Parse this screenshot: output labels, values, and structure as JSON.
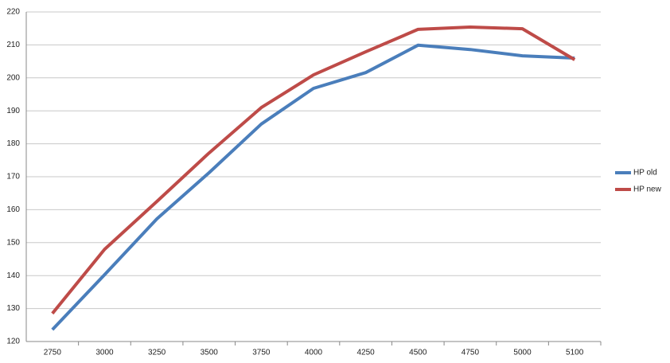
{
  "chart_data": {
    "type": "line",
    "categories": [
      "2750",
      "3000",
      "3250",
      "3500",
      "3750",
      "4000",
      "4250",
      "4500",
      "4750",
      "5000",
      "5100"
    ],
    "series": [
      {
        "name": "HP old",
        "color": "#4a7ebb",
        "values": [
          123.6,
          140.3,
          157.2,
          171.2,
          186,
          196.8,
          201.6,
          209.9,
          208.6,
          206.7,
          206
        ]
      },
      {
        "name": "HP new",
        "color": "#be4b48",
        "values": [
          128.5,
          148,
          162.5,
          177.2,
          191,
          200.9,
          207.9,
          214.7,
          215.4,
          214.9,
          205.5
        ]
      }
    ],
    "ylim": [
      120,
      220
    ],
    "yticks": [
      120,
      130,
      140,
      150,
      160,
      170,
      180,
      190,
      200,
      210,
      220
    ],
    "grid": true,
    "legend": "right"
  }
}
